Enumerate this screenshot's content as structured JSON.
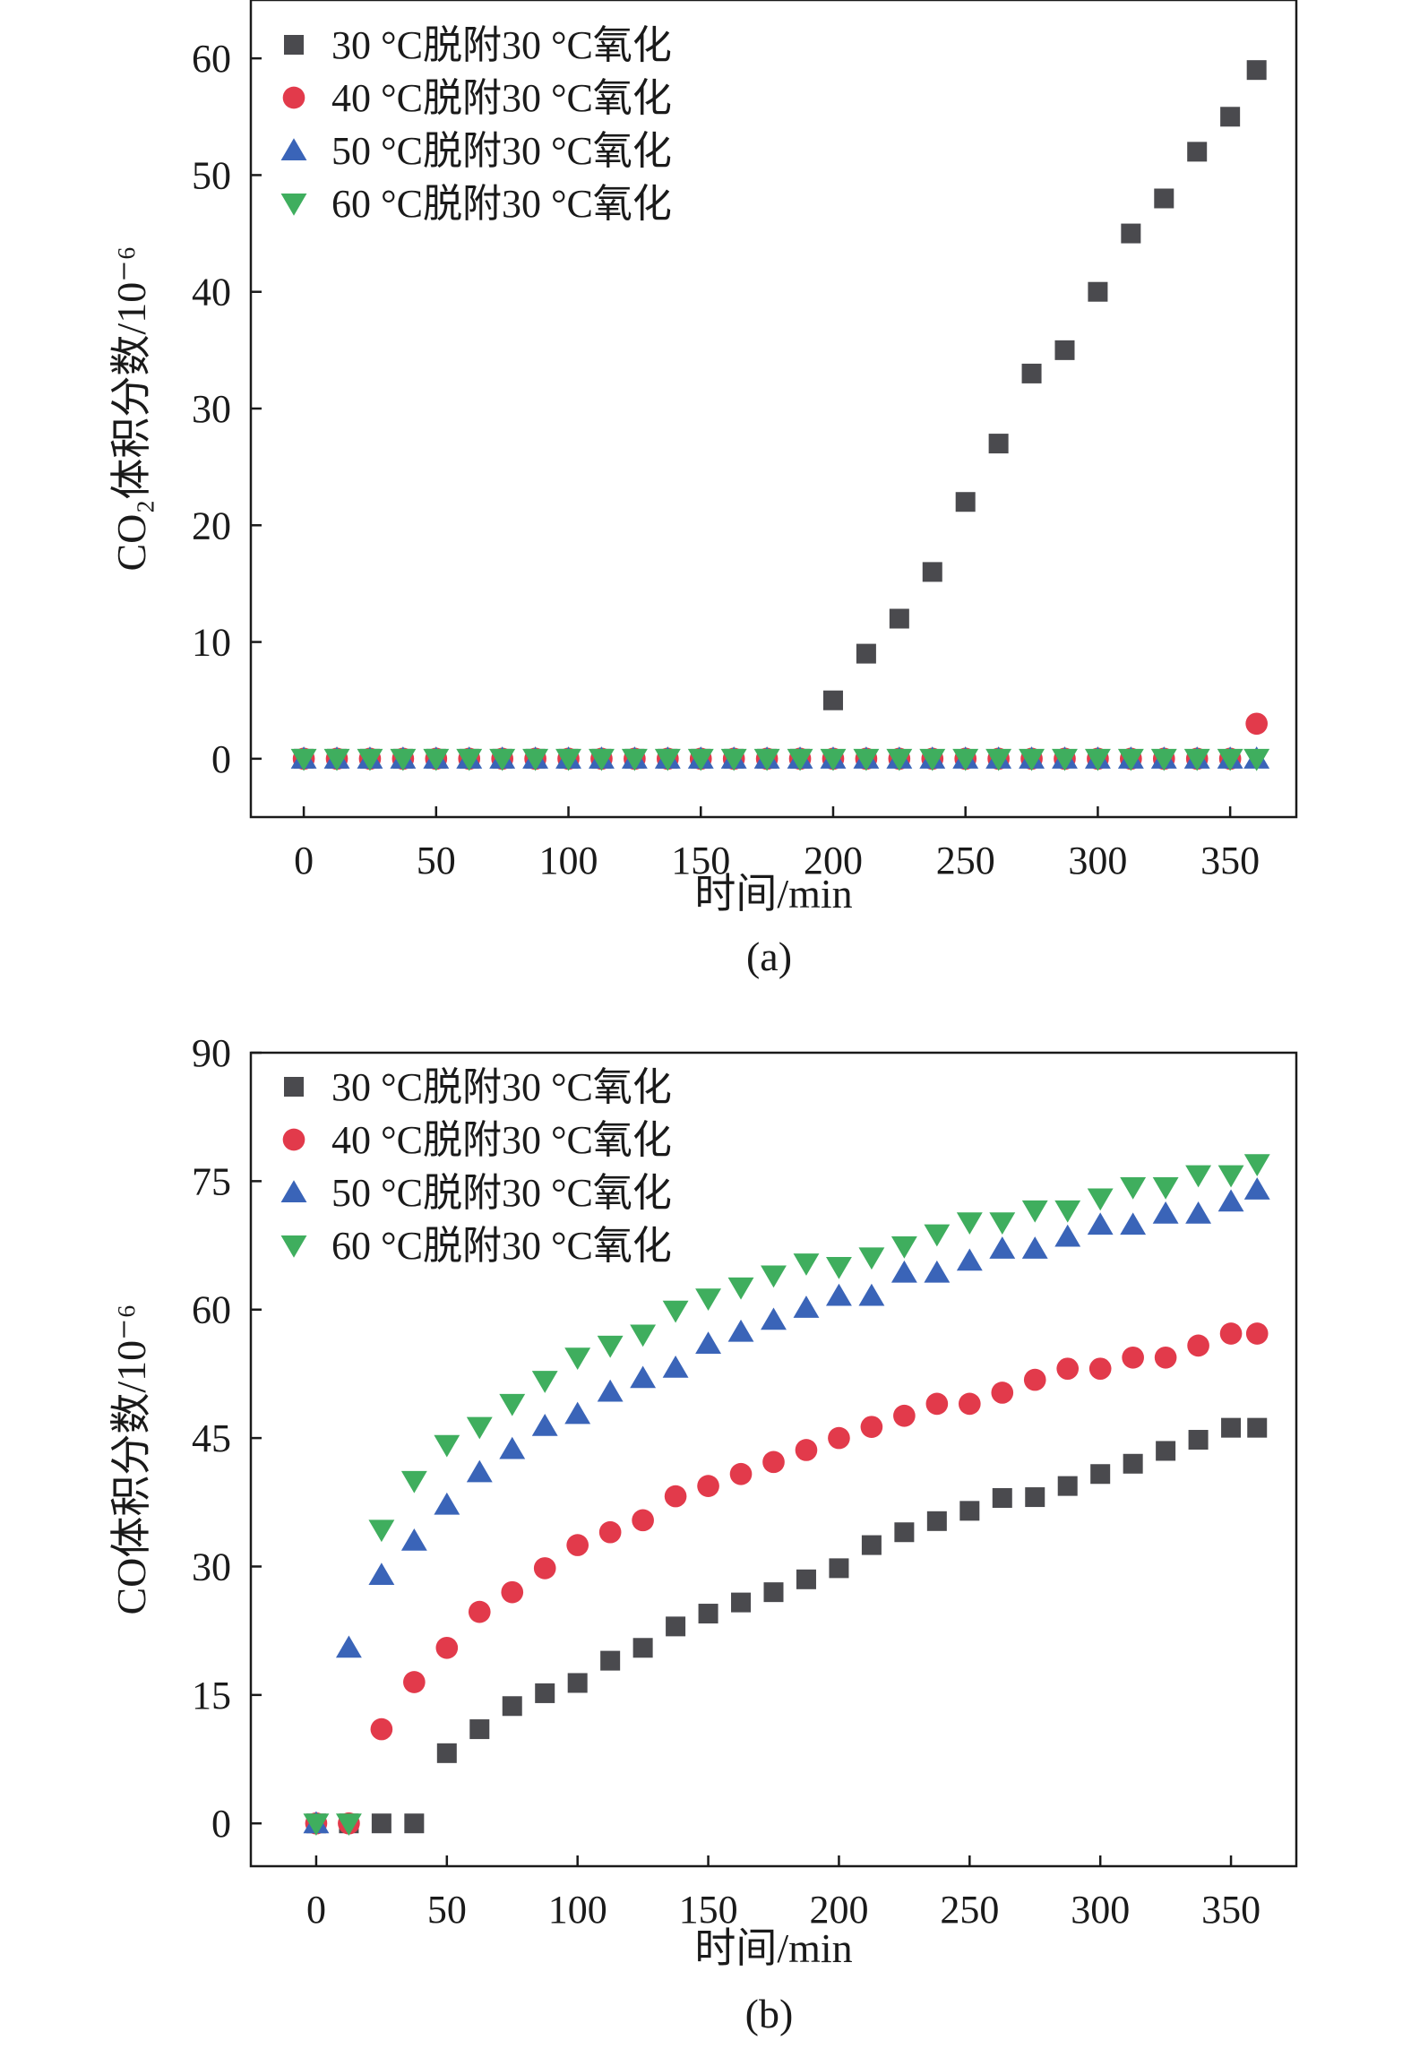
{
  "chart_data": [
    {
      "type": "scatter",
      "panel_caption": "(a)",
      "xlabel": "时间/min",
      "ylabel": "CO₂体积分数/10⁻⁶",
      "xlim": [
        -20,
        375
      ],
      "ylim": [
        -5,
        65
      ],
      "xticks": [
        0,
        50,
        100,
        150,
        200,
        250,
        300,
        350
      ],
      "yticks": [
        0,
        10,
        20,
        30,
        40,
        50,
        60
      ],
      "grid": false,
      "legend_position": "top-left",
      "series": [
        {
          "name": "30 °C脱附30 °C氧化",
          "marker": "square",
          "color": "#4a4a4e",
          "x": [
            0,
            12.5,
            25,
            37.5,
            50,
            62.5,
            75,
            87.5,
            100,
            112.5,
            125,
            137.5,
            150,
            162.5,
            175,
            187.5,
            200,
            212.5,
            225,
            237.5,
            250,
            262.5,
            275,
            287.5,
            300,
            312.5,
            325,
            337.5,
            350,
            360
          ],
          "y": [
            0,
            0,
            0,
            0,
            0,
            0,
            0,
            0,
            0,
            0,
            0,
            0,
            0,
            0,
            0,
            0,
            5,
            9,
            12,
            16,
            22,
            27,
            33,
            35,
            40,
            45,
            48,
            52,
            55,
            59
          ]
        },
        {
          "name": "40 °C脱附30 °C氧化",
          "marker": "circle",
          "color": "#e23a4b",
          "x": [
            0,
            12.5,
            25,
            37.5,
            50,
            62.5,
            75,
            87.5,
            100,
            112.5,
            125,
            137.5,
            150,
            162.5,
            175,
            187.5,
            200,
            212.5,
            225,
            237.5,
            250,
            262.5,
            275,
            287.5,
            300,
            312.5,
            325,
            337.5,
            350,
            360
          ],
          "y": [
            0,
            0,
            0,
            0,
            0,
            0,
            0,
            0,
            0,
            0,
            0,
            0,
            0,
            0,
            0,
            0,
            0,
            0,
            0,
            0,
            0,
            0,
            0,
            0,
            0,
            0,
            0,
            0,
            0,
            3
          ]
        },
        {
          "name": "50 °C脱附30 °C氧化",
          "marker": "triangle-up",
          "color": "#3a64b8",
          "x": [
            0,
            12.5,
            25,
            37.5,
            50,
            62.5,
            75,
            87.5,
            100,
            112.5,
            125,
            137.5,
            150,
            162.5,
            175,
            187.5,
            200,
            212.5,
            225,
            237.5,
            250,
            262.5,
            275,
            287.5,
            300,
            312.5,
            325,
            337.5,
            350,
            360
          ],
          "y": [
            0,
            0,
            0,
            0,
            0,
            0,
            0,
            0,
            0,
            0,
            0,
            0,
            0,
            0,
            0,
            0,
            0,
            0,
            0,
            0,
            0,
            0,
            0,
            0,
            0,
            0,
            0,
            0,
            0,
            0
          ]
        },
        {
          "name": "60 °C脱附30 °C氧化",
          "marker": "triangle-down",
          "color": "#3fae5e",
          "x": [
            0,
            12.5,
            25,
            37.5,
            50,
            62.5,
            75,
            87.5,
            100,
            112.5,
            125,
            137.5,
            150,
            162.5,
            175,
            187.5,
            200,
            212.5,
            225,
            237.5,
            250,
            262.5,
            275,
            287.5,
            300,
            312.5,
            325,
            337.5,
            350,
            360
          ],
          "y": [
            0,
            0,
            0,
            0,
            0,
            0,
            0,
            0,
            0,
            0,
            0,
            0,
            0,
            0,
            0,
            0,
            0,
            0,
            0,
            0,
            0,
            0,
            0,
            0,
            0,
            0,
            0,
            0,
            0,
            0
          ]
        }
      ]
    },
    {
      "type": "scatter",
      "panel_caption": "(b)",
      "xlabel": "时间/min",
      "ylabel": "CO体积分数/10⁻⁶",
      "xlim": [
        -25,
        375
      ],
      "ylim": [
        -5,
        90
      ],
      "xticks": [
        0,
        50,
        100,
        150,
        200,
        250,
        300,
        350
      ],
      "yticks": [
        0,
        15,
        30,
        45,
        60,
        75,
        90
      ],
      "grid": false,
      "legend_position": "top-left",
      "series": [
        {
          "name": "30 °C脱附30 °C氧化",
          "marker": "square",
          "color": "#4a4a4e",
          "x": [
            0,
            12.5,
            25,
            37.5,
            50,
            62.5,
            75,
            87.5,
            100,
            112.5,
            125,
            137.5,
            150,
            162.5,
            175,
            187.5,
            200,
            212.5,
            225,
            237.5,
            250,
            262.5,
            275,
            287.5,
            300,
            312.5,
            325,
            337.5,
            350,
            360
          ],
          "y": [
            0,
            0,
            0,
            0,
            8.2,
            11,
            13.7,
            15.2,
            16.4,
            19,
            20.5,
            23,
            24.5,
            25.8,
            27,
            28.5,
            29.8,
            32.5,
            34,
            35.3,
            36.5,
            38,
            38.1,
            39.4,
            40.8,
            42,
            43.5,
            44.8,
            46.2,
            46.2
          ]
        },
        {
          "name": "40 °C脱附30 °C氧化",
          "marker": "circle",
          "color": "#e23a4b",
          "x": [
            0,
            12.5,
            25,
            37.5,
            50,
            62.5,
            75,
            87.5,
            100,
            112.5,
            125,
            137.5,
            150,
            162.5,
            175,
            187.5,
            200,
            212.5,
            225,
            237.5,
            250,
            262.5,
            275,
            287.5,
            300,
            312.5,
            325,
            337.5,
            350,
            360
          ],
          "y": [
            0,
            0,
            11,
            16.5,
            20.5,
            24.7,
            27,
            29.8,
            32.5,
            34,
            35.4,
            38.2,
            39.4,
            40.8,
            42.2,
            43.6,
            45,
            46.3,
            47.6,
            49,
            49,
            50.3,
            51.8,
            53.1,
            53.1,
            54.4,
            54.4,
            55.8,
            57.2,
            57.2
          ]
        },
        {
          "name": "50 °C脱附30 °C氧化",
          "marker": "triangle-up",
          "color": "#3a64b8",
          "x": [
            0,
            12.5,
            25,
            37.5,
            50,
            62.5,
            75,
            87.5,
            100,
            112.5,
            125,
            137.5,
            150,
            162.5,
            175,
            187.5,
            200,
            212.5,
            225,
            237.5,
            250,
            262.5,
            275,
            287.5,
            300,
            312.5,
            325,
            337.5,
            350,
            360
          ],
          "y": [
            0,
            20.5,
            29,
            33,
            37.2,
            41,
            43.7,
            46.4,
            47.8,
            50.4,
            52,
            53.2,
            56,
            57.4,
            58.8,
            60.2,
            61.6,
            61.6,
            64.3,
            64.3,
            65.7,
            67.1,
            67.1,
            68.5,
            69.9,
            69.9,
            71.2,
            71.2,
            72.6,
            74
          ]
        },
        {
          "name": "60 °C脱附30 °C氧化",
          "marker": "triangle-down",
          "color": "#3fae5e",
          "x": [
            0,
            12.5,
            25,
            37.5,
            50,
            62.5,
            75,
            87.5,
            100,
            112.5,
            125,
            137.5,
            150,
            162.5,
            175,
            187.5,
            200,
            212.5,
            225,
            237.5,
            250,
            262.5,
            275,
            287.5,
            300,
            312.5,
            325,
            337.5,
            350,
            360
          ],
          "y": [
            0,
            0,
            34.3,
            40,
            44.2,
            46.3,
            49,
            51.7,
            54.4,
            55.8,
            57.1,
            59.9,
            61.3,
            62.6,
            64,
            65.4,
            65,
            66.1,
            67.4,
            68.8,
            70.2,
            70.2,
            71.6,
            71.6,
            73,
            74.3,
            74.3,
            75.7,
            75.7,
            77
          ]
        }
      ]
    }
  ]
}
